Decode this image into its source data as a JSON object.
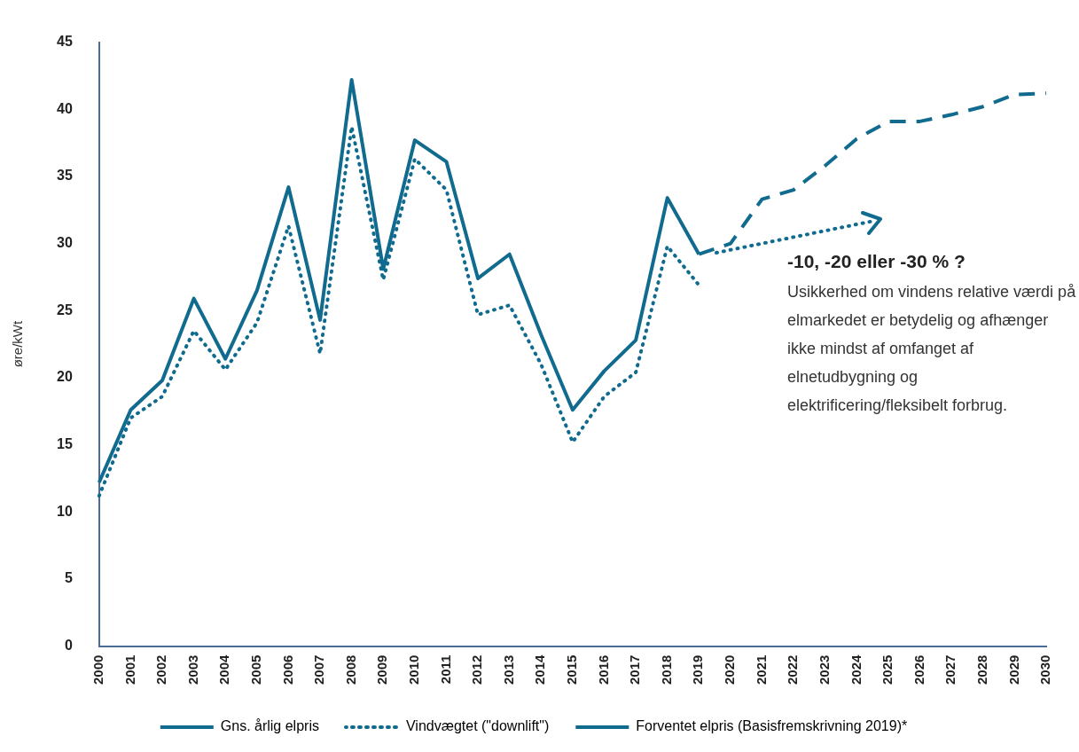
{
  "chart_data": {
    "type": "line",
    "ylabel": "øre/kWt",
    "categories": [
      "2000",
      "2001",
      "2002",
      "2003",
      "2004",
      "2005",
      "2006",
      "2007",
      "2008",
      "2009",
      "2010",
      "2011",
      "2012",
      "2013",
      "2014",
      "2015",
      "2016",
      "2017",
      "2018",
      "2019",
      "2020",
      "2021",
      "2022",
      "2023",
      "2024",
      "2025",
      "2026",
      "2027",
      "2028",
      "2029",
      "2030"
    ],
    "series": [
      {
        "name": "Gns. årlig elpris",
        "color": "#116b8e",
        "line_style": "solid",
        "values": [
          12.2,
          17.6,
          19.8,
          25.9,
          21.4,
          26.5,
          34.2,
          24.3,
          42.2,
          28.1,
          37.7,
          36.1,
          27.4,
          29.2,
          23.2,
          17.6,
          20.5,
          22.8,
          33.4,
          29.2,
          null,
          null,
          null,
          null,
          null,
          null,
          null,
          null,
          null,
          null,
          null
        ]
      },
      {
        "name": "Vindvægtet (\"downlift\")",
        "color": "#116b8e",
        "line_style": "dotted",
        "values": [
          11.2,
          17.0,
          18.6,
          23.5,
          20.6,
          24.1,
          31.3,
          21.8,
          38.7,
          27.3,
          36.3,
          34.0,
          24.7,
          25.4,
          21.0,
          15.2,
          18.6,
          20.4,
          29.8,
          26.9,
          null,
          null,
          null,
          null,
          null,
          null,
          null,
          null,
          null,
          null,
          null
        ]
      },
      {
        "name": "Forventet elpris (Basisfremskrivning 2019)*",
        "color": "#116b8e",
        "line_style": "dashed",
        "values": [
          null,
          null,
          null,
          null,
          null,
          null,
          null,
          null,
          null,
          null,
          null,
          null,
          null,
          null,
          null,
          null,
          null,
          null,
          null,
          29.2,
          30.0,
          33.3,
          34.0,
          35.8,
          37.8,
          39.1,
          39.1,
          39.6,
          40.2,
          41.1,
          41.2
        ]
      }
    ],
    "ylim": [
      0,
      45
    ],
    "yticks": [
      0,
      5,
      10,
      15,
      20,
      25,
      30,
      35,
      40,
      45
    ],
    "grid": false,
    "legend": "bottom",
    "marker": "none",
    "annotations": [
      "-10, -20 eller -30 % ?",
      "Usikkerhed om vindens relative værdi på elmarkedet er betydelig og afhænger ikke mindst af omfanget af elnetudbygning og elektrificering/fleksibelt forbrug."
    ]
  }
}
